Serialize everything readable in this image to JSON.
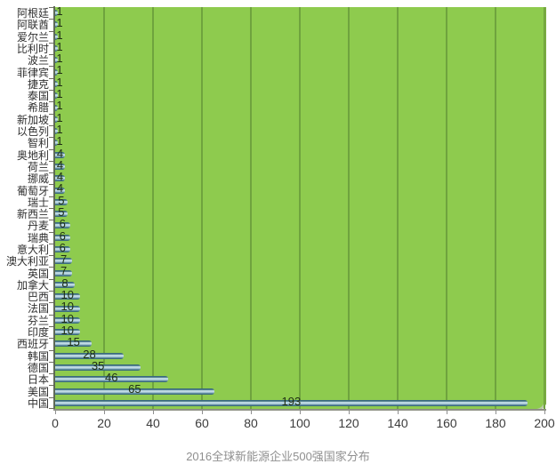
{
  "page": {
    "background": "#ffffff"
  },
  "chart_data": {
    "type": "bar",
    "orientation": "horizontal",
    "title": "2016全球新能源企业500强国家分布",
    "categories": [
      "阿根廷",
      "阿联酋",
      "爱尔兰",
      "比利时",
      "波兰",
      "菲律宾",
      "捷克",
      "泰国",
      "希腊",
      "新加坡",
      "以色列",
      "智利",
      "奥地利",
      "荷兰",
      "挪威",
      "葡萄牙",
      "瑞士",
      "新西兰",
      "丹麦",
      "瑞典",
      "意大利",
      "澳大利亚",
      "英国",
      "加拿大",
      "巴西",
      "法国",
      "芬兰",
      "印度",
      "西班牙",
      "韩国",
      "德国",
      "日本",
      "美国",
      "中国"
    ],
    "values": [
      1,
      1,
      1,
      1,
      1,
      1,
      1,
      1,
      1,
      1,
      1,
      1,
      4,
      4,
      4,
      4,
      5,
      5,
      6,
      6,
      6,
      7,
      7,
      8,
      10,
      10,
      10,
      10,
      15,
      28,
      35,
      46,
      65,
      193
    ],
    "total": 500,
    "data_labels_shown": true,
    "xlim": [
      0,
      200
    ],
    "x_ticks": [
      0,
      20,
      40,
      60,
      80,
      100,
      120,
      140,
      160,
      180,
      200
    ],
    "grid": true,
    "legend": "none",
    "colors": {
      "plot_background": "#8ecb4e",
      "gridline": "#6fa33e",
      "bar_edge": "#3a6b7d",
      "bar_fill": "#8fb4c6",
      "bar_highlight": "#c6e0e9",
      "value_label": "#203014",
      "category_label": "#303030",
      "axis_tick_label": "#3c3c3c",
      "y_axis_line": "#5e6a55",
      "x_axis_line": "#8f9184",
      "right_edge": "#79ab41",
      "tick_mark_y": "#6b6b5f",
      "tick_mark_x": "#8f8f8f",
      "title": "#8f8f8f"
    }
  }
}
